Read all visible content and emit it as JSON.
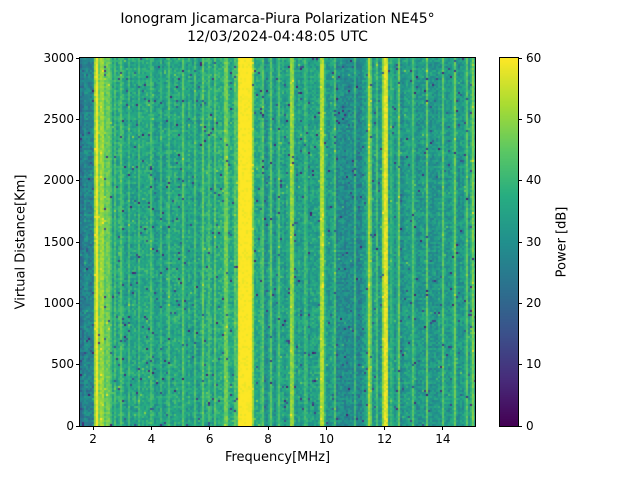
{
  "figure": {
    "title": "Ionogram Jicamarca-Piura Polarization NE45°",
    "subtitle": "12/03/2024-04:48:05 UTC"
  },
  "axes": {
    "x_label": "Frequency[MHz]",
    "y_label": "Virtual Distance[Km]",
    "x_ticks": [
      2,
      4,
      6,
      8,
      10,
      12,
      14
    ],
    "y_ticks": [
      0,
      500,
      1000,
      1500,
      2000,
      2500,
      3000
    ]
  },
  "colorbar": {
    "label": "Power [dB]",
    "ticks": [
      0,
      10,
      20,
      30,
      40,
      50,
      60
    ]
  },
  "chart_data": {
    "type": "heatmap",
    "title": "Ionogram Jicamarca-Piura Polarization NE45°",
    "subtitle": "12/03/2024-04:48:05 UTC",
    "xlabel": "Frequency[MHz]",
    "ylabel": "Virtual Distance[Km]",
    "colorbar_label": "Power [dB]",
    "colormap": "viridis",
    "xlim": [
      1.55,
      15.1
    ],
    "ylim": [
      0,
      3000
    ],
    "clim": [
      0,
      60
    ],
    "x_ticks": [
      2,
      4,
      6,
      8,
      10,
      12,
      14
    ],
    "y_ticks": [
      0,
      500,
      1000,
      1500,
      2000,
      2500,
      3000
    ],
    "colorbar_ticks": [
      0,
      10,
      20,
      30,
      40,
      50,
      60
    ],
    "description": "Noisy power heatmap: full-height vertical interference stripes over a teal background; stripes span 0-3000 km at fixed frequencies.",
    "background_regions": [
      {
        "range": [
          1.55,
          2.05
        ],
        "power_db": 27
      },
      {
        "range": [
          2.05,
          7.7
        ],
        "power_db": 35
      },
      {
        "range": [
          7.7,
          10.35
        ],
        "power_db": 33
      },
      {
        "range": [
          10.35,
          11.4
        ],
        "power_db": 30
      },
      {
        "range": [
          11.4,
          15.1
        ],
        "power_db": 32
      }
    ],
    "stripes": [
      {
        "freq_mhz": 2.13,
        "power_db": 60,
        "width_mhz": 0.09,
        "sigma_mhz": 0.05
      },
      {
        "freq_mhz": 2.3,
        "power_db": 51,
        "width_mhz": 0.14,
        "sigma_mhz": 0.1
      },
      {
        "freq_mhz": 2.52,
        "power_db": 47,
        "width_mhz": 0.12,
        "sigma_mhz": 0.1
      },
      {
        "freq_mhz": 2.75,
        "power_db": 42,
        "width_mhz": 0.05,
        "sigma_mhz": 0.05
      },
      {
        "freq_mhz": 2.97,
        "power_db": 43,
        "width_mhz": 0.05,
        "sigma_mhz": 0.05
      },
      {
        "freq_mhz": 3.25,
        "power_db": 41,
        "width_mhz": 0.04,
        "sigma_mhz": 0.04
      },
      {
        "freq_mhz": 3.6,
        "power_db": 42,
        "width_mhz": 0.04,
        "sigma_mhz": 0.04
      },
      {
        "freq_mhz": 4.0,
        "power_db": 42,
        "width_mhz": 0.05,
        "sigma_mhz": 0.04
      },
      {
        "freq_mhz": 4.35,
        "power_db": 40,
        "width_mhz": 0.04,
        "sigma_mhz": 0.04
      },
      {
        "freq_mhz": 4.62,
        "power_db": 42,
        "width_mhz": 0.05,
        "sigma_mhz": 0.04
      },
      {
        "freq_mhz": 5.1,
        "power_db": 44,
        "width_mhz": 0.06,
        "sigma_mhz": 0.05
      },
      {
        "freq_mhz": 5.5,
        "power_db": 42,
        "width_mhz": 0.04,
        "sigma_mhz": 0.04
      },
      {
        "freq_mhz": 5.77,
        "power_db": 45,
        "width_mhz": 0.06,
        "sigma_mhz": 0.05
      },
      {
        "freq_mhz": 5.95,
        "power_db": 43,
        "width_mhz": 0.04,
        "sigma_mhz": 0.04
      },
      {
        "freq_mhz": 6.18,
        "power_db": 44,
        "width_mhz": 0.05,
        "sigma_mhz": 0.05
      },
      {
        "freq_mhz": 6.57,
        "power_db": 47,
        "width_mhz": 0.08,
        "sigma_mhz": 0.06
      },
      {
        "freq_mhz": 6.85,
        "power_db": 44,
        "width_mhz": 0.05,
        "sigma_mhz": 0.05
      },
      {
        "freq_mhz": 7.22,
        "power_db": 61,
        "width_mhz": 0.4,
        "sigma_mhz": 0.14
      },
      {
        "freq_mhz": 7.8,
        "power_db": 44,
        "width_mhz": 0.05,
        "sigma_mhz": 0.05
      },
      {
        "freq_mhz": 8.1,
        "power_db": 44,
        "width_mhz": 0.06,
        "sigma_mhz": 0.05
      },
      {
        "freq_mhz": 8.35,
        "power_db": 43,
        "width_mhz": 0.05,
        "sigma_mhz": 0.04
      },
      {
        "freq_mhz": 8.8,
        "power_db": 51,
        "width_mhz": 0.09,
        "sigma_mhz": 0.06
      },
      {
        "freq_mhz": 9.3,
        "power_db": 42,
        "width_mhz": 0.05,
        "sigma_mhz": 0.04
      },
      {
        "freq_mhz": 9.87,
        "power_db": 53,
        "width_mhz": 0.1,
        "sigma_mhz": 0.06
      },
      {
        "freq_mhz": 10.3,
        "power_db": 42,
        "width_mhz": 0.05,
        "sigma_mhz": 0.04
      },
      {
        "freq_mhz": 11.0,
        "power_db": 40,
        "width_mhz": 0.04,
        "sigma_mhz": 0.04
      },
      {
        "freq_mhz": 11.47,
        "power_db": 52,
        "width_mhz": 0.08,
        "sigma_mhz": 0.06
      },
      {
        "freq_mhz": 11.75,
        "power_db": 42,
        "width_mhz": 0.04,
        "sigma_mhz": 0.04
      },
      {
        "freq_mhz": 12.02,
        "power_db": 58,
        "width_mhz": 0.1,
        "sigma_mhz": 0.07
      },
      {
        "freq_mhz": 12.25,
        "power_db": 43,
        "width_mhz": 0.04,
        "sigma_mhz": 0.04
      },
      {
        "freq_mhz": 12.48,
        "power_db": 46,
        "width_mhz": 0.06,
        "sigma_mhz": 0.05
      },
      {
        "freq_mhz": 12.95,
        "power_db": 43,
        "width_mhz": 0.05,
        "sigma_mhz": 0.04
      },
      {
        "freq_mhz": 13.45,
        "power_db": 45,
        "width_mhz": 0.06,
        "sigma_mhz": 0.05
      },
      {
        "freq_mhz": 14.0,
        "power_db": 44,
        "width_mhz": 0.05,
        "sigma_mhz": 0.05
      },
      {
        "freq_mhz": 14.4,
        "power_db": 46,
        "width_mhz": 0.06,
        "sigma_mhz": 0.05
      },
      {
        "freq_mhz": 14.8,
        "power_db": 44,
        "width_mhz": 0.05,
        "sigma_mhz": 0.04
      },
      {
        "freq_mhz": 15.02,
        "power_db": 48,
        "width_mhz": 0.07,
        "sigma_mhz": 0.05
      }
    ],
    "noise": {
      "cell_jitter_db": 5,
      "column_jitter_db": 3,
      "row_jitter_db": 1.5,
      "dark_speck_fraction": 0.022,
      "dark_speck_power_db": [
        5,
        20
      ],
      "bright_speck_fraction": 0.012,
      "bright_speck_boost_db": 8
    }
  }
}
